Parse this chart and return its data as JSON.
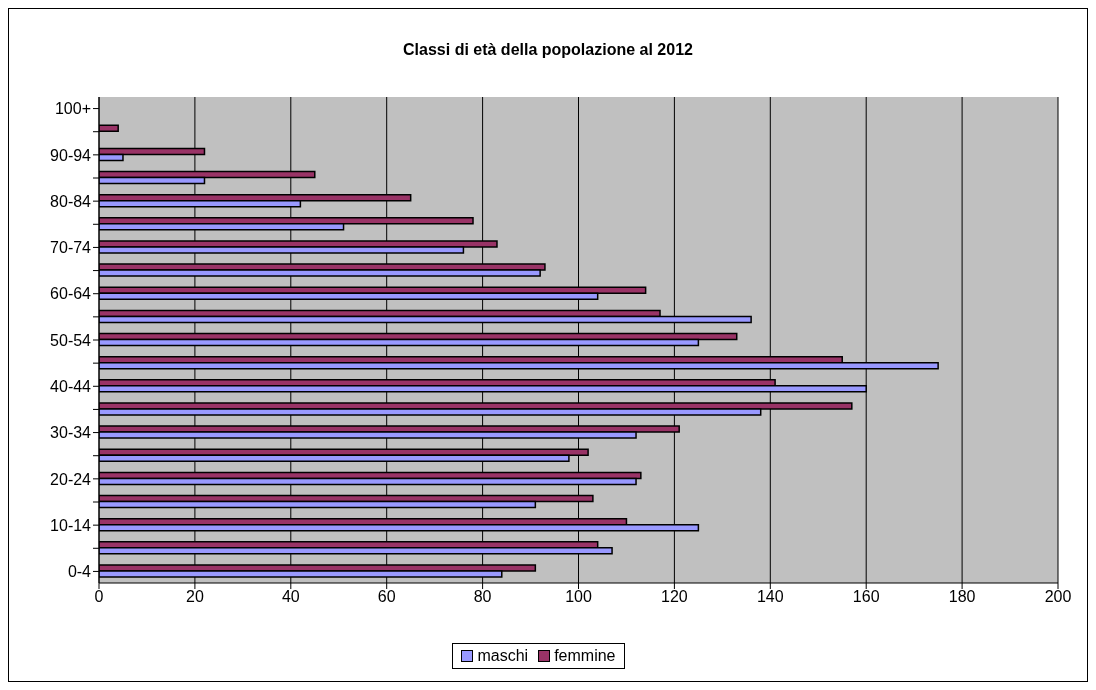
{
  "chart_data": {
    "type": "bar",
    "orientation": "horizontal",
    "title": "Classi di età della popolazione al 2012",
    "categories": [
      "100+",
      null,
      "90-94",
      null,
      "80-84",
      null,
      "70-74",
      null,
      "60-64",
      null,
      "50-54",
      null,
      "40-44",
      null,
      "30-34",
      null,
      "20-24",
      null,
      "10-14",
      null,
      "0-4"
    ],
    "series": [
      {
        "name": "maschi",
        "color": "#9999ff",
        "values": [
          null,
          null,
          5,
          22,
          42,
          51,
          76,
          92,
          104,
          136,
          125,
          175,
          160,
          138,
          112,
          98,
          112,
          91,
          125,
          107,
          84
        ]
      },
      {
        "name": "femmine",
        "color": "#993366",
        "values": [
          null,
          4,
          22,
          45,
          65,
          78,
          83,
          93,
          114,
          117,
          133,
          155,
          141,
          157,
          121,
          102,
          113,
          103,
          110,
          104,
          91
        ]
      }
    ],
    "xlim": [
      0,
      200
    ],
    "xticks": [
      0,
      20,
      40,
      60,
      80,
      100,
      120,
      140,
      160,
      180,
      200
    ],
    "grid": "x",
    "legend": "bottom"
  }
}
